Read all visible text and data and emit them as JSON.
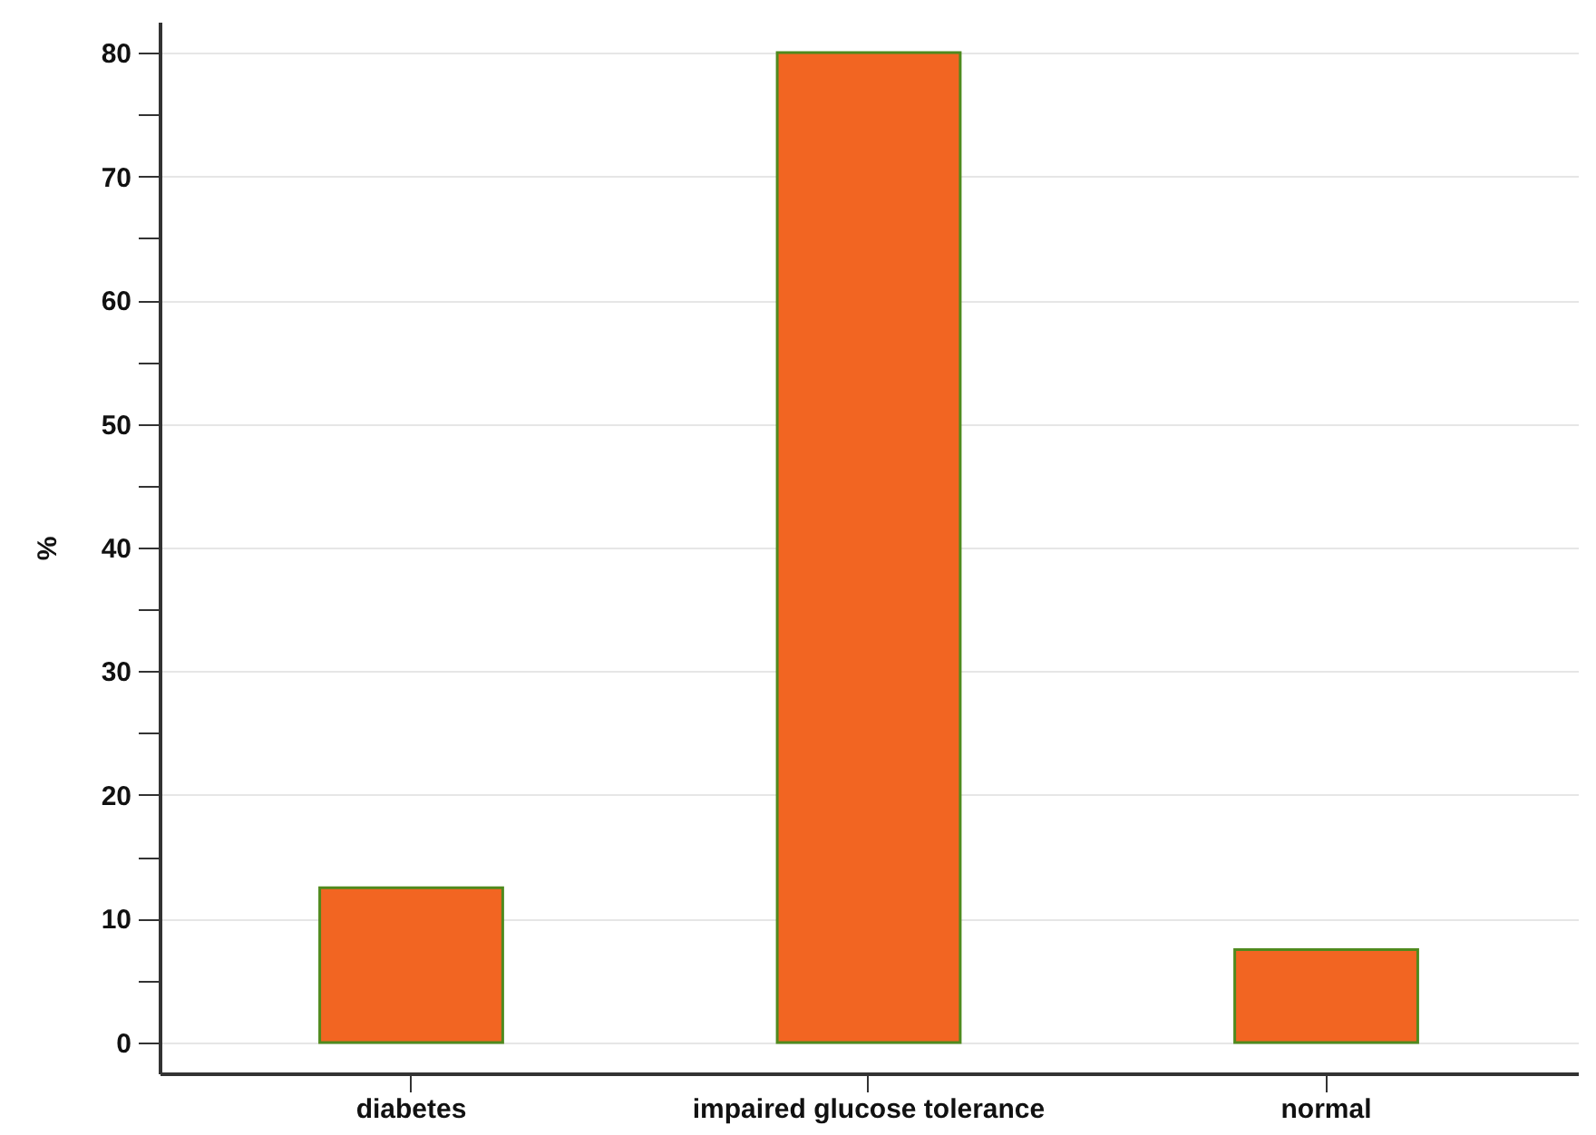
{
  "chart_data": {
    "type": "bar",
    "ylabel": "%",
    "categories": [
      "diabetes",
      "impaired glucose tolerance",
      "normal"
    ],
    "values": [
      12.5,
      80,
      7.5
    ],
    "color": "#f26522",
    "ylim": [
      -2.5,
      82.5
    ],
    "yticks": [
      0,
      {
        "value": 5,
        "label": null
      },
      10,
      {
        "value": 15,
        "label": null
      },
      20,
      {
        "value": 25,
        "label": null
      },
      30,
      {
        "value": 35,
        "label": null
      },
      40,
      {
        "value": 45,
        "label": null
      },
      50,
      {
        "value": 55,
        "label": null
      },
      60,
      {
        "value": 65,
        "label": null
      },
      70,
      {
        "value": 75,
        "label": null
      },
      80
    ],
    "grid": "y"
  }
}
